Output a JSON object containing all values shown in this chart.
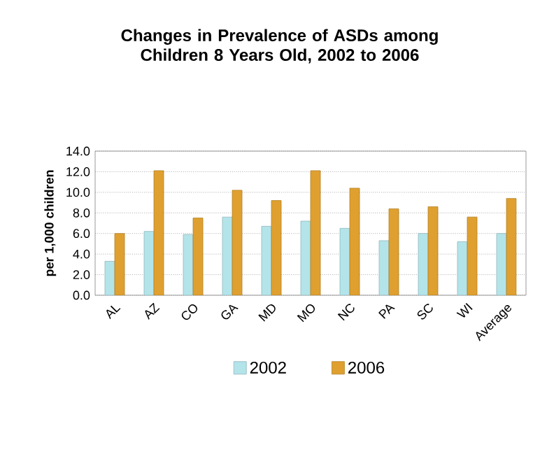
{
  "chart_data": {
    "type": "bar",
    "title": "Changes in Prevalence of ASDs among Children 8 Years Old, 2002 to 2006",
    "ylabel": "per 1,000 children",
    "categories": [
      "AL",
      "AZ",
      "CO",
      "GA",
      "MD",
      "MO",
      "NC",
      "PA",
      "SC",
      "WI",
      "Average"
    ],
    "series": [
      {
        "name": "2002",
        "color": "#b3e4ea",
        "values": [
          3.3,
          6.2,
          5.9,
          7.6,
          6.7,
          7.2,
          6.5,
          5.3,
          6.0,
          5.2,
          6.0
        ]
      },
      {
        "name": "2006",
        "color": "#dfa030",
        "values": [
          6.0,
          12.1,
          7.5,
          10.2,
          9.2,
          12.1,
          10.4,
          8.4,
          8.6,
          7.6,
          9.4
        ]
      }
    ],
    "ylim": [
      0,
      14
    ],
    "yticks": [
      {
        "value": 0,
        "label": "0.0"
      },
      {
        "value": 2,
        "label": "2.0"
      },
      {
        "value": 4,
        "label": "4.0"
      },
      {
        "value": 6,
        "label": "6.0"
      },
      {
        "value": 8,
        "label": "8.0"
      },
      {
        "value": 10,
        "label": "10.0"
      },
      {
        "value": 12,
        "label": "12.0"
      },
      {
        "value": 14,
        "label": "14.0"
      }
    ],
    "grid": "y",
    "legend": "bottom"
  }
}
